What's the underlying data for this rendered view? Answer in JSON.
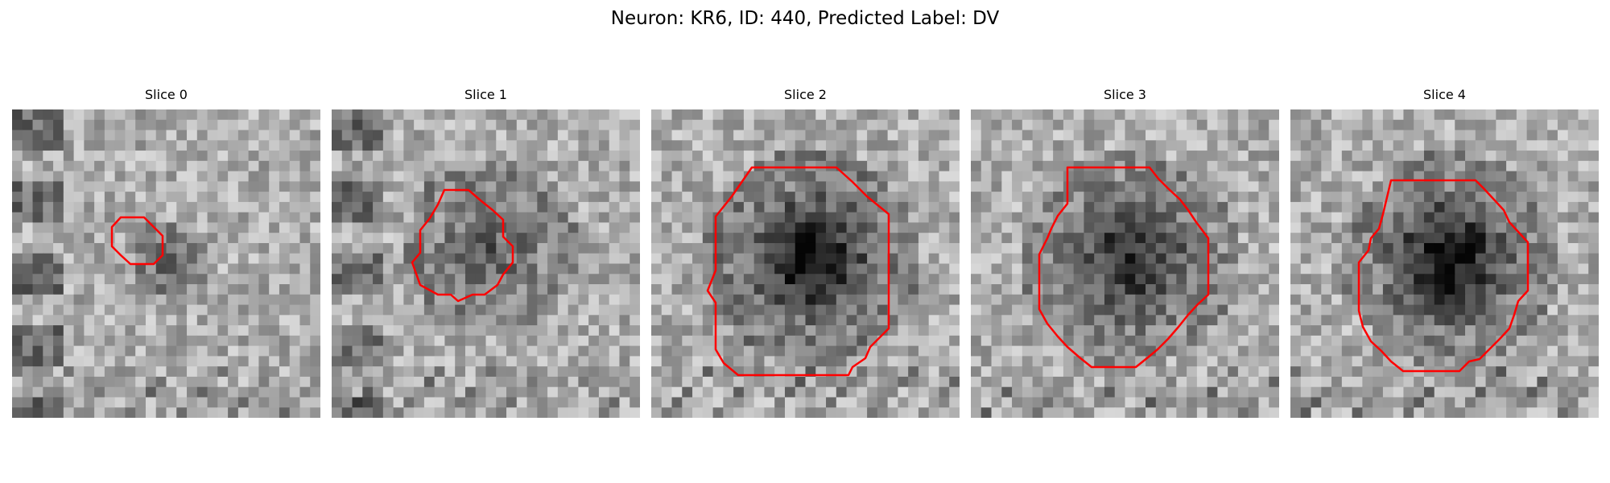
{
  "figure": {
    "title": "Neuron: KR6, ID: 440, Predicted Label: DV"
  },
  "panels": [
    {
      "label": "Slice 0"
    },
    {
      "label": "Slice 1"
    },
    {
      "label": "Slice 2"
    },
    {
      "label": "Slice 3"
    },
    {
      "label": "Slice 4"
    }
  ],
  "colors": {
    "outline": "#ff0000"
  }
}
